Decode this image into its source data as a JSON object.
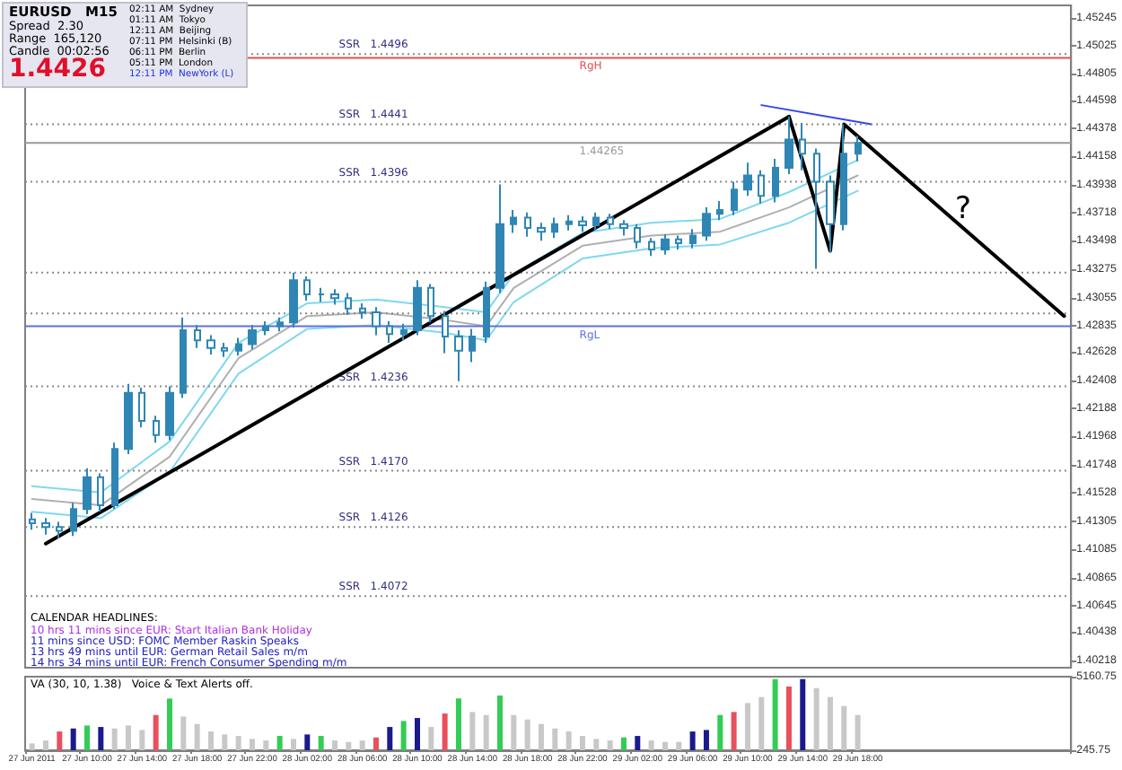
{
  "chart_data": [
    {
      "type": "candlestick",
      "categories": [
        null,
        null,
        null,
        null,
        null,
        null,
        null,
        null,
        null,
        null,
        null,
        null,
        null,
        null,
        null,
        null,
        null,
        null,
        null,
        null,
        null,
        null,
        null,
        null,
        null,
        null,
        null,
        null,
        null,
        null,
        null,
        null,
        null,
        null,
        null,
        null,
        null,
        null,
        null,
        null,
        null,
        null,
        null,
        null,
        null,
        null,
        null,
        null,
        null,
        null,
        null,
        null,
        null,
        null,
        null,
        null,
        null,
        null,
        null,
        null,
        null,
        null,
        null,
        null,
        null,
        null,
        null,
        null,
        null,
        null,
        null,
        null,
        null,
        null,
        null,
        null
      ],
      "tick_labels": "y",
      "ylim": [
        1.4016,
        1.4534
      ],
      "yticks": [
        1.40218,
        1.40438,
        1.40645,
        1.40865,
        1.41085,
        1.41305,
        1.41528,
        1.41748,
        1.41968,
        1.42188,
        1.42408,
        1.42628,
        1.42835,
        1.43055,
        1.43275,
        1.43498,
        1.43718,
        1.43938,
        1.44158,
        1.44378,
        1.44598,
        1.44805,
        1.45025,
        1.45245
      ],
      "grid": false,
      "series": [
        {
          "type": "line",
          "color": "#7fd8f0",
          "values": [
            1.4158,
            null,
            null,
            null,
            null,
            1.4153,
            null,
            null,
            null,
            null,
            1.4193,
            null,
            null,
            null,
            null,
            1.427,
            null,
            null,
            null,
            null,
            1.4301,
            null,
            null,
            null,
            null,
            1.4304,
            null,
            null,
            null,
            null,
            1.4298,
            null,
            null,
            1.4294,
            null,
            1.4324,
            null,
            null,
            null,
            null,
            1.4356,
            null,
            null,
            null,
            null,
            1.4364,
            null,
            null,
            null,
            null,
            1.4367,
            null,
            null,
            null,
            null,
            1.4388,
            null,
            null,
            null,
            null,
            1.4413,
            null,
            null,
            null,
            null,
            null,
            null,
            null,
            null,
            null,
            null,
            null,
            null,
            null,
            null,
            null
          ]
        },
        {
          "type": "line",
          "color": "#b0b0b0",
          "values": [
            1.4148,
            null,
            null,
            null,
            null,
            1.4143,
            null,
            null,
            null,
            null,
            1.4181,
            null,
            null,
            null,
            null,
            1.4258,
            null,
            null,
            null,
            null,
            1.4291,
            null,
            null,
            null,
            null,
            1.4294,
            null,
            null,
            null,
            null,
            1.4288,
            null,
            null,
            1.4283,
            null,
            1.4313,
            null,
            null,
            null,
            null,
            1.4346,
            null,
            null,
            null,
            null,
            1.4354,
            null,
            null,
            null,
            null,
            1.4357,
            null,
            null,
            null,
            null,
            1.4376,
            null,
            null,
            null,
            null,
            1.4401,
            null,
            null,
            null,
            null,
            null,
            null,
            null,
            null,
            null,
            null,
            null,
            null,
            null,
            null,
            null
          ]
        },
        {
          "type": "line",
          "color": "#7fd8f0",
          "values": [
            1.4138,
            null,
            null,
            null,
            null,
            1.4133,
            null,
            null,
            null,
            null,
            1.4169,
            null,
            null,
            null,
            null,
            1.4246,
            null,
            null,
            null,
            null,
            1.4281,
            null,
            null,
            null,
            null,
            1.4284,
            null,
            null,
            null,
            null,
            1.4278,
            null,
            null,
            1.4272,
            null,
            1.4302,
            null,
            null,
            null,
            null,
            1.4336,
            null,
            null,
            null,
            null,
            1.4344,
            null,
            null,
            null,
            null,
            1.4347,
            null,
            null,
            null,
            null,
            1.4364,
            null,
            null,
            null,
            null,
            1.4389,
            null,
            null,
            null,
            null,
            null,
            null,
            null,
            null,
            null,
            null,
            null,
            null,
            null,
            null,
            null
          ]
        },
        {
          "color": "#2f86b5",
          "ohlc": [
            [
              1.4132,
              1.4137,
              1.4124,
              1.4129
            ],
            [
              1.4129,
              1.4133,
              1.412,
              1.4126
            ],
            [
              1.4126,
              1.413,
              1.4117,
              1.4123
            ],
            [
              1.4123,
              1.4145,
              1.4119,
              1.414
            ],
            [
              1.414,
              1.4172,
              1.4136,
              1.4165
            ],
            [
              1.4165,
              1.4168,
              1.4138,
              1.4143
            ],
            [
              1.4143,
              1.4192,
              1.414,
              1.4187
            ],
            [
              1.4187,
              1.4238,
              1.4183,
              1.4231
            ],
            [
              1.4231,
              1.4235,
              1.4204,
              1.4209
            ],
            [
              1.4209,
              1.4213,
              1.4192,
              1.4198
            ],
            [
              1.4198,
              1.4236,
              1.4194,
              1.4231
            ],
            [
              1.4231,
              1.429,
              1.4227,
              1.428
            ],
            [
              1.428,
              1.4284,
              1.4266,
              1.4272
            ],
            [
              1.4272,
              1.4276,
              1.4261,
              1.4266
            ],
            [
              1.4266,
              1.427,
              1.4259,
              1.4264
            ],
            [
              1.4264,
              1.4274,
              1.426,
              1.4269
            ],
            [
              1.4269,
              1.4284,
              1.4265,
              1.428
            ],
            [
              1.428,
              1.4287,
              1.4276,
              1.4283
            ],
            [
              1.4283,
              1.429,
              1.4279,
              1.4286
            ],
            [
              1.4286,
              1.4325,
              1.4282,
              1.4319
            ],
            [
              1.4319,
              1.4322,
              1.4303,
              1.4308
            ],
            [
              1.4308,
              1.4313,
              1.4302,
              1.4308
            ],
            [
              1.4308,
              1.4312,
              1.43,
              1.4305
            ],
            [
              1.4305,
              1.4309,
              1.4292,
              1.4297
            ],
            [
              1.4297,
              1.4301,
              1.4289,
              1.4294
            ],
            [
              1.4294,
              1.4298,
              1.4276,
              1.4283
            ],
            [
              1.4283,
              1.4287,
              1.427,
              1.4277
            ],
            [
              1.4277,
              1.4285,
              1.4272,
              1.428
            ],
            [
              1.428,
              1.4319,
              1.4276,
              1.4313
            ],
            [
              1.4313,
              1.4316,
              1.4286,
              1.4291
            ],
            [
              1.4291,
              1.4295,
              1.4262,
              1.4275
            ],
            [
              1.4275,
              1.428,
              1.424,
              1.4264
            ],
            [
              1.4264,
              1.4281,
              1.4255,
              1.4275
            ],
            [
              1.4275,
              1.4318,
              1.427,
              1.4313
            ],
            [
              1.4313,
              1.4394,
              1.4309,
              1.4363
            ],
            [
              1.4363,
              1.4374,
              1.4356,
              1.4368
            ],
            [
              1.4368,
              1.4372,
              1.4353,
              1.436
            ],
            [
              1.436,
              1.4364,
              1.435,
              1.4357
            ],
            [
              1.4357,
              1.4368,
              1.4352,
              1.4363
            ],
            [
              1.4363,
              1.437,
              1.4358,
              1.4365
            ],
            [
              1.4365,
              1.4369,
              1.4357,
              1.4362
            ],
            [
              1.4362,
              1.4372,
              1.4358,
              1.4368
            ],
            [
              1.4368,
              1.4371,
              1.4359,
              1.4363
            ],
            [
              1.4363,
              1.4366,
              1.4354,
              1.436
            ],
            [
              1.436,
              1.4363,
              1.4344,
              1.4349
            ],
            [
              1.4349,
              1.4352,
              1.4338,
              1.4343
            ],
            [
              1.4343,
              1.4355,
              1.4339,
              1.4351
            ],
            [
              1.4351,
              1.4354,
              1.4343,
              1.4348
            ],
            [
              1.4348,
              1.4359,
              1.4344,
              1.4354
            ],
            [
              1.4354,
              1.4376,
              1.435,
              1.4371
            ],
            [
              1.4371,
              1.4381,
              1.4366,
              1.4374
            ],
            [
              1.4374,
              1.4396,
              1.437,
              1.439
            ],
            [
              1.439,
              1.4411,
              1.4385,
              1.4401
            ],
            [
              1.4401,
              1.4405,
              1.4379,
              1.4385
            ],
            [
              1.4385,
              1.4414,
              1.438,
              1.4407
            ],
            [
              1.4407,
              1.4447,
              1.4402,
              1.4429
            ],
            [
              1.4429,
              1.4442,
              1.4405,
              1.4418
            ],
            [
              1.4418,
              1.4422,
              1.4328,
              1.4396
            ],
            [
              1.4396,
              1.4401,
              1.4341,
              1.4363
            ],
            [
              1.4363,
              1.4441,
              1.4358,
              1.4418
            ],
            [
              1.4418,
              1.4432,
              1.4412,
              1.44265
            ],
            null,
            null,
            null,
            null,
            null,
            null,
            null,
            null,
            null,
            null,
            null,
            null,
            null,
            null,
            null
          ]
        },
        {
          "type": "line",
          "color": "#000000",
          "values": [
            null,
            1.4113,
            null,
            null,
            null,
            null,
            null,
            null,
            null,
            null,
            null,
            null,
            null,
            null,
            null,
            null,
            null,
            null,
            null,
            null,
            null,
            null,
            null,
            null,
            null,
            null,
            null,
            null,
            null,
            null,
            null,
            null,
            null,
            null,
            null,
            null,
            null,
            null,
            null,
            null,
            null,
            null,
            null,
            null,
            null,
            null,
            null,
            null,
            null,
            null,
            null,
            null,
            null,
            null,
            null,
            1.4447,
            null,
            null,
            null,
            null,
            null,
            null,
            null,
            null,
            null,
            null,
            null,
            null,
            null,
            null,
            null,
            null,
            null,
            null,
            null,
            null
          ]
        },
        {
          "type": "line",
          "color": "#000000",
          "values": [
            null,
            null,
            null,
            null,
            null,
            null,
            null,
            null,
            null,
            null,
            null,
            null,
            null,
            null,
            null,
            null,
            null,
            null,
            null,
            null,
            null,
            null,
            null,
            null,
            null,
            null,
            null,
            null,
            null,
            null,
            null,
            null,
            null,
            null,
            null,
            null,
            null,
            null,
            null,
            null,
            null,
            null,
            null,
            null,
            null,
            null,
            null,
            null,
            null,
            null,
            null,
            null,
            null,
            null,
            null,
            1.4447,
            null,
            null,
            1.4342,
            1.4441,
            null,
            null,
            null,
            null,
            null,
            null,
            null,
            null,
            null,
            null,
            null,
            null,
            null,
            null,
            null,
            1.4291
          ]
        },
        {
          "type": "line",
          "color": "#3344ee",
          "values": [
            null,
            null,
            null,
            null,
            null,
            null,
            null,
            null,
            null,
            null,
            null,
            null,
            null,
            null,
            null,
            null,
            null,
            null,
            null,
            null,
            null,
            null,
            null,
            null,
            null,
            null,
            null,
            null,
            null,
            null,
            null,
            null,
            null,
            null,
            null,
            null,
            null,
            null,
            null,
            null,
            null,
            null,
            null,
            null,
            null,
            null,
            null,
            null,
            null,
            null,
            null,
            null,
            null,
            1.4456,
            null,
            null,
            null,
            null,
            null,
            null,
            null,
            1.4441,
            null,
            null,
            null,
            null,
            null,
            null,
            null,
            null,
            null,
            null,
            null,
            null,
            null,
            null
          ]
        }
      ],
      "ref_lines": [
        {
          "axis": "y",
          "value": 1.4496,
          "label": "SSR   1.4496",
          "color": "#8a8a8a",
          "line_style": "dotted"
        },
        {
          "axis": "y",
          "value": 1.4493,
          "label": "RgH",
          "color": "#e05050",
          "line_style": "solid"
        },
        {
          "axis": "y",
          "value": 1.4441,
          "label": "SSR   1.4441",
          "color": "#8a8a8a",
          "line_style": "dotted"
        },
        {
          "axis": "y",
          "value": 1.44265,
          "label": "1.44265",
          "color": "#9a9a9a",
          "line_style": "solid"
        },
        {
          "axis": "y",
          "value": 1.4396,
          "label": "SSR   1.4396",
          "color": "#8a8a8a",
          "line_style": "dotted"
        },
        {
          "axis": "y",
          "value": 1.4325,
          "label": null,
          "color": "#8a8a8a",
          "line_style": "dotted"
        },
        {
          "axis": "y",
          "value": 1.4293,
          "label": null,
          "color": "#8a8a8a",
          "line_style": "dotted"
        },
        {
          "axis": "y",
          "value": 1.4283,
          "label": "RgL",
          "color": "#6070e0",
          "line_style": "solid"
        },
        {
          "axis": "y",
          "value": 1.4236,
          "label": "SSR   1.4236",
          "color": "#8a8a8a",
          "line_style": "dotted"
        },
        {
          "axis": "y",
          "value": 1.417,
          "label": "SSR   1.4170",
          "color": "#8a8a8a",
          "line_style": "dotted"
        },
        {
          "axis": "y",
          "value": 1.4126,
          "label": "SSR   1.4126",
          "color": "#8a8a8a",
          "line_style": "dotted"
        },
        {
          "axis": "y",
          "value": 1.4072,
          "label": "SSR   1.4072",
          "color": "#8a8a8a",
          "line_style": "dotted"
        }
      ],
      "annotations": [
        "EURUSD   M15",
        "Spread  2.30",
        "Range  165,120",
        "Candle  00:02:56",
        "1.4426",
        "02:11 AM  Sydney",
        "01:11 AM  Tokyo",
        "12:11 AM  Beijing",
        "07:11 PM  Helsinki (B)",
        "06:11 PM  Berlin",
        "05:11 PM  London",
        "12:11 PM  NewYork (L)",
        "CALENDAR HEADLINES:",
        "10 hrs 11 mins since EUR: Start Italian Bank Holiday",
        "11 mins since USD: FOMC Member Raskin Speaks",
        "13 hrs 49 mins until EUR: German Retail Sales m/m",
        "14 hrs 34 mins until EUR: French Consumer Spending m/m",
        "?"
      ]
    },
    {
      "type": "bar",
      "categories": [
        "27 Jun 2011",
        null,
        null,
        null,
        "27 Jun 10:00",
        null,
        null,
        null,
        "27 Jun 14:00",
        null,
        null,
        null,
        "27 Jun 18:00",
        null,
        null,
        null,
        "27 Jun 22:00",
        null,
        null,
        null,
        "28 Jun 02:00",
        null,
        null,
        null,
        "28 Jun 06:00",
        null,
        null,
        null,
        "28 Jun 10:00",
        null,
        null,
        null,
        "28 Jun 14:00",
        null,
        null,
        null,
        "28 Jun 18:00",
        null,
        null,
        null,
        "28 Jun 22:00",
        null,
        null,
        null,
        "29 Jun 02:00",
        null,
        null,
        null,
        "29 Jun 06:00",
        null,
        null,
        null,
        "29 Jun 10:00",
        null,
        null,
        null,
        "29 Jun 14:00",
        null,
        null,
        null,
        "29 Jun 18:00",
        null,
        null,
        null,
        null,
        null,
        null,
        null,
        null,
        null,
        null,
        null,
        null,
        null,
        null,
        null
      ],
      "ylim": [
        245.75,
        5160.75
      ],
      "yticks": [
        245.75,
        5160.75
      ],
      "grid": false,
      "values": [
        700,
        900,
        1500,
        1700,
        1900,
        1800,
        1700,
        1900,
        1600,
        2600,
        3700,
        2500,
        2000,
        1500,
        1300,
        1200,
        1000,
        900,
        1200,
        1000,
        1300,
        1200,
        900,
        800,
        900,
        1100,
        1800,
        2200,
        2400,
        1800,
        2700,
        3700,
        2800,
        2600,
        3900,
        2600,
        2300,
        2000,
        1700,
        1500,
        1200,
        1000,
        900,
        1100,
        1200,
        900,
        800,
        800,
        1500,
        1600,
        2600,
        2800,
        3400,
        3800,
        5000,
        4500,
        5000,
        4400,
        3800,
        3200,
        2600,
        null,
        null,
        null,
        null,
        null,
        null,
        null,
        null,
        null,
        null,
        null,
        null,
        null,
        null,
        null
      ],
      "colors": [
        "#c8c8c8",
        "#c8c8c8",
        "#e8505b",
        "#1a1a8c",
        "#33cc55",
        "#1a1a8c",
        "#c8c8c8",
        "#c8c8c8",
        "#c8c8c8",
        "#e8505b",
        "#33cc55",
        "#c8c8c8",
        "#c8c8c8",
        "#c8c8c8",
        "#c8c8c8",
        "#c8c8c8",
        "#c8c8c8",
        "#c8c8c8",
        "#33cc55",
        "#c8c8c8",
        "#1a1a8c",
        "#33cc55",
        "#c8c8c8",
        "#c8c8c8",
        "#c8c8c8",
        "#e8505b",
        "#1a1a8c",
        "#33cc55",
        "#1a1a8c",
        "#c8c8c8",
        "#e8505b",
        "#33cc55",
        "#c8c8c8",
        "#c8c8c8",
        "#33cc55",
        "#c8c8c8",
        "#c8c8c8",
        "#c8c8c8",
        "#c8c8c8",
        "#c8c8c8",
        "#c8c8c8",
        "#c8c8c8",
        "#c8c8c8",
        "#33cc55",
        "#1a1a8c",
        "#c8c8c8",
        "#c8c8c8",
        "#c8c8c8",
        "#1a1a8c",
        "#1a1a8c",
        "#33cc55",
        "#e8505b",
        "#c8c8c8",
        "#c8c8c8",
        "#33cc55",
        "#e8505b",
        "#1a1a8c",
        "#c8c8c8",
        "#c8c8c8",
        "#c8c8c8",
        "#c8c8c8",
        null,
        null,
        null,
        null,
        null,
        null,
        null,
        null,
        null,
        null,
        null,
        null,
        null,
        null,
        null
      ],
      "annotations": [
        "VA (30, 10, 1.38)   Voice & Text Alerts off."
      ]
    }
  ]
}
